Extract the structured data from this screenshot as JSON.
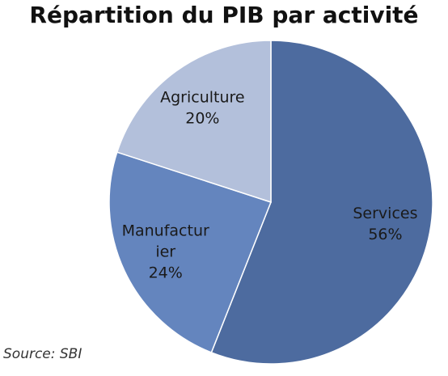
{
  "chart_data": {
    "type": "pie",
    "title": "Répartition du PIB par activité",
    "slices": [
      {
        "label": "Services",
        "value": 56,
        "display": "56%",
        "color": "#4d6b9f"
      },
      {
        "label": "Manufactur ier",
        "label_lines": [
          "Manufactur",
          "ier"
        ],
        "value": 24,
        "display": "24%",
        "color": "#6485be"
      },
      {
        "label": "Agriculture",
        "value": 20,
        "display": "20%",
        "color": "#b3c0db"
      }
    ],
    "start_angle_deg": 0,
    "direction": "clockwise",
    "legend": "none"
  },
  "source": "Source: SBI"
}
